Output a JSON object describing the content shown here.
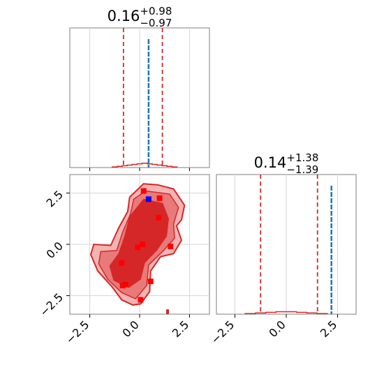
{
  "chart_data": {
    "type": "corner",
    "colors": {
      "posterior": "#d62728",
      "truth": "#1f77b4",
      "sample_marker": "#ff0000",
      "highlight_marker": "#0000ff",
      "grid": "#d6d6d6",
      "frame": "#7f7f7f"
    },
    "grid": true,
    "panels": [
      {
        "kind": "histogram",
        "parameter_index": 0,
        "title": {
          "median": "0.16",
          "upper": "+0.98",
          "lower": "−0.97"
        },
        "xlim": [
          -3.5,
          3.5
        ],
        "quantile_lines": [
          -0.81,
          1.14
        ],
        "truth_line": 0.45,
        "histogram": {
          "x": [
            -1.25,
            -1.0,
            -0.75,
            -0.5,
            -0.25,
            0.0,
            0.25,
            0.5,
            0.75,
            1.0,
            1.25,
            1.5,
            1.75
          ],
          "density": [
            0.002,
            0.004,
            0.006,
            0.008,
            0.01,
            0.012,
            0.014,
            0.012,
            0.01,
            0.008,
            0.006,
            0.004,
            0.002
          ]
        },
        "x_ticks": [
          -2.5,
          0.0,
          2.5
        ]
      },
      {
        "kind": "2d",
        "x_parameter_index": 0,
        "y_parameter_index": 1,
        "xlim": [
          -3.5,
          3.5
        ],
        "ylim": [
          -3.4,
          3.4
        ],
        "x_ticks": [
          -2.5,
          0.0,
          2.5
        ],
        "y_ticks": [
          -2.5,
          0.0,
          2.5
        ],
        "x_tick_labels": [
          "−2.5",
          "0.0",
          "2.5"
        ],
        "y_tick_labels": [
          "−2.5",
          "0.0",
          "2.5"
        ],
        "contour_outer": [
          [
            0.2,
            2.95
          ],
          [
            0.9,
            2.9
          ],
          [
            1.7,
            2.7
          ],
          [
            2.25,
            1.9
          ],
          [
            2.1,
            1.2
          ],
          [
            1.85,
            0.9
          ],
          [
            2.1,
            0.2
          ],
          [
            1.7,
            -0.45
          ],
          [
            1.05,
            -0.6
          ],
          [
            0.55,
            -1.3
          ],
          [
            0.5,
            -2.3
          ],
          [
            0.05,
            -2.9
          ],
          [
            -0.35,
            -2.95
          ],
          [
            -0.9,
            -2.7
          ],
          [
            -1.4,
            -2.05
          ],
          [
            -2.1,
            -1.3
          ],
          [
            -2.45,
            -0.5
          ],
          [
            -2.3,
            0.0
          ],
          [
            -1.45,
            -0.05
          ],
          [
            -1.05,
            0.8
          ],
          [
            -0.6,
            1.6
          ],
          [
            -0.5,
            2.3
          ]
        ],
        "contour_mid": [
          [
            0.3,
            2.6
          ],
          [
            1.5,
            2.45
          ],
          [
            1.95,
            1.8
          ],
          [
            1.7,
            1.0
          ],
          [
            1.75,
            0.3
          ],
          [
            1.2,
            -0.3
          ],
          [
            0.45,
            -1.0
          ],
          [
            0.35,
            -2.0
          ],
          [
            -0.2,
            -2.65
          ],
          [
            -0.9,
            -2.35
          ],
          [
            -1.6,
            -1.7
          ],
          [
            -2.05,
            -0.95
          ],
          [
            -1.95,
            -0.35
          ],
          [
            -1.15,
            -0.3
          ],
          [
            -0.85,
            0.6
          ],
          [
            -0.45,
            1.5
          ],
          [
            -0.3,
            2.2
          ]
        ],
        "contour_inner": [
          [
            0.2,
            2.2
          ],
          [
            1.15,
            2.0
          ],
          [
            1.45,
            1.25
          ],
          [
            1.35,
            0.4
          ],
          [
            0.85,
            -0.3
          ],
          [
            0.25,
            -0.9
          ],
          [
            0.05,
            -1.7
          ],
          [
            -0.55,
            -2.1
          ],
          [
            -1.3,
            -1.75
          ],
          [
            -1.5,
            -1.05
          ],
          [
            -1.05,
            -0.45
          ],
          [
            -0.75,
            0.4
          ],
          [
            -0.5,
            1.35
          ]
        ],
        "samples": [
          [
            0.2,
            2.6
          ],
          [
            1.0,
            2.25
          ],
          [
            0.95,
            1.3
          ],
          [
            -0.1,
            -0.15
          ],
          [
            0.15,
            0.0
          ],
          [
            1.55,
            -0.1
          ],
          [
            -0.9,
            -0.9
          ],
          [
            0.55,
            -1.8
          ],
          [
            -0.7,
            -1.95
          ],
          [
            0.05,
            -2.7
          ],
          [
            -0.85,
            -2.0
          ]
        ],
        "highlight_sample": [
          0.45,
          2.2
        ],
        "truth_marker": [
          1.4,
          -3.3
        ]
      },
      {
        "kind": "histogram",
        "parameter_index": 1,
        "title": {
          "median": "0.14",
          "upper": "+1.38",
          "lower": "−1.39"
        },
        "xlim": [
          -3.4,
          3.4
        ],
        "quantile_lines": [
          -1.25,
          1.52
        ],
        "truth_line": 2.2,
        "histogram": {
          "x": [
            -1.75,
            -1.25,
            -0.75,
            -0.25,
            0.25,
            0.75,
            1.25,
            1.75
          ],
          "density": [
            0.002,
            0.004,
            0.006,
            0.008,
            0.008,
            0.006,
            0.004,
            0.002
          ]
        },
        "x_ticks": [
          -2.5,
          0.0,
          2.5
        ],
        "x_tick_labels": [
          "−2.5",
          "0.0",
          "2.5"
        ]
      }
    ]
  }
}
